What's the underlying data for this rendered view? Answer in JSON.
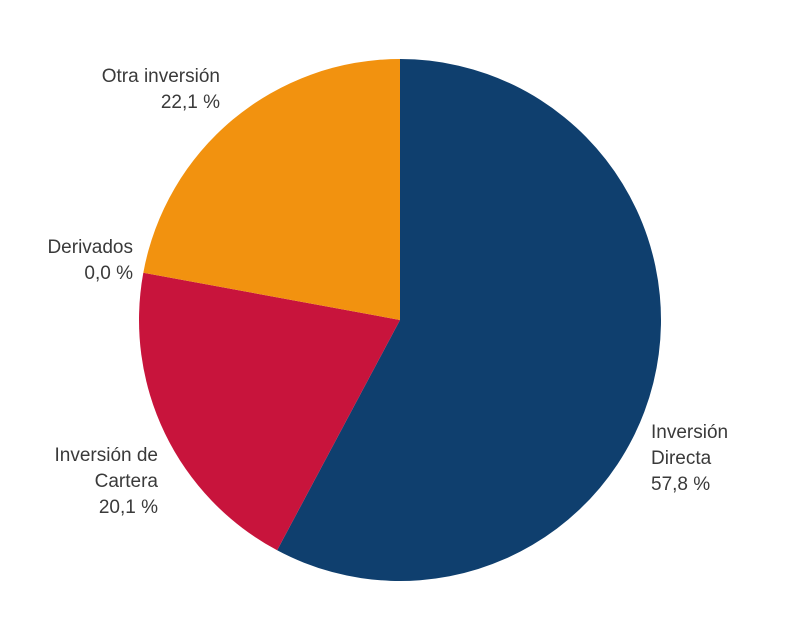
{
  "chart_data": {
    "type": "pie",
    "title": "",
    "start_angle_deg": 0,
    "direction": "clockwise",
    "center": [
      400,
      320
    ],
    "radius": 261,
    "slices": [
      {
        "label": "Inversión Directa",
        "label_lines": [
          "Inversión",
          "Directa"
        ],
        "value": 57.8,
        "value_text": "57,8 %",
        "color": "#0F3F6E"
      },
      {
        "label": "Inversión de Cartera",
        "label_lines": [
          "Inversión de",
          "Cartera"
        ],
        "value": 20.1,
        "value_text": "20,1 %",
        "color": "#C8143C"
      },
      {
        "label": "Derivados",
        "label_lines": [
          "Derivados"
        ],
        "value": 0.0,
        "value_text": "0,0 %",
        "color": "#C8143C"
      },
      {
        "label": "Otra inversión",
        "label_lines": [
          "Otra inversión"
        ],
        "value": 22.1,
        "value_text": "22,1 %",
        "color": "#F2920F"
      }
    ],
    "categories": [
      "Inversión Directa",
      "Inversión de Cartera",
      "Derivados",
      "Otra inversión"
    ],
    "values": [
      57.8,
      20.1,
      0.0,
      22.1
    ],
    "legend": "none (direct labels)"
  },
  "labels": {
    "directa": {
      "line1": "Inversión",
      "line2": "Directa",
      "value": "57,8 %"
    },
    "cartera": {
      "line1": "Inversión de",
      "line2": "Cartera",
      "value": "20,1 %"
    },
    "derivados": {
      "line1": "Derivados",
      "value": "0,0 %"
    },
    "otra": {
      "line1": "Otra inversión",
      "value": "22,1 %"
    }
  }
}
